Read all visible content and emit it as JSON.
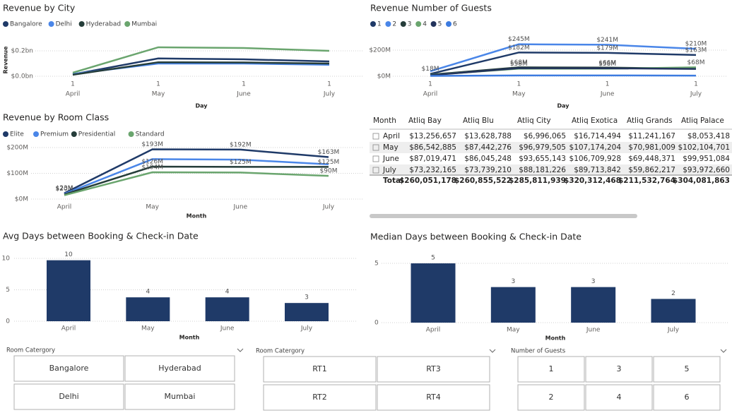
{
  "chart_data": [
    {
      "type": "line",
      "title": "Revenue by City",
      "x_title": "Day",
      "y_title": "Revenue",
      "categories": [
        "April",
        "May",
        "June",
        "July"
      ],
      "day_labels": [
        "1",
        "1",
        "1",
        "1"
      ],
      "ylim": [
        0,
        250000000
      ],
      "yticks": [
        {
          "value": 0,
          "label": "$0.0bn"
        },
        {
          "value": 200000000,
          "label": "$0.2bn"
        }
      ],
      "grid": true,
      "series": [
        {
          "name": "Bangalore",
          "color": "#1f3a68",
          "values": [
            15000000,
            140000000,
            133000000,
            117000000
          ]
        },
        {
          "name": "Delhi",
          "color": "#4a86e8",
          "values": [
            18000000,
            100000000,
            100000000,
            90000000
          ]
        },
        {
          "name": "Hyderabad",
          "color": "#253d3a",
          "values": [
            12000000,
            110000000,
            108000000,
            100000000
          ]
        },
        {
          "name": "Mumbai",
          "color": "#6aa56e",
          "values": [
            28000000,
            228000000,
            222000000,
            200000000
          ]
        }
      ]
    },
    {
      "type": "line",
      "title": "Revenue Number of Guests",
      "x_title": "Day",
      "categories": [
        "April",
        "May",
        "June",
        "July"
      ],
      "day_labels": [
        "1",
        "1",
        "1",
        "1"
      ],
      "ylim": [
        0,
        250000000
      ],
      "yticks": [
        {
          "value": 0,
          "label": "$0M"
        },
        {
          "value": 200000000,
          "label": "$200M"
        }
      ],
      "grid": true,
      "series": [
        {
          "name": "1",
          "color": "#1f3a68",
          "values": [
            18000000,
            182000000,
            179000000,
            163000000
          ],
          "value_labels": [
            "$18M",
            "$182M",
            "$179M",
            "$163M"
          ]
        },
        {
          "name": "2",
          "color": "#4a86e8",
          "values": [
            38000000,
            245000000,
            241000000,
            210000000
          ],
          "value_labels": [
            null,
            "$245M",
            "$241M",
            "$210M"
          ]
        },
        {
          "name": "3",
          "color": "#253d3a",
          "values": [
            12000000,
            68000000,
            66000000,
            58000000
          ],
          "value_labels": [
            null,
            "$68M",
            "$66M",
            null
          ]
        },
        {
          "name": "4",
          "color": "#6aa56e",
          "values": [
            10000000,
            58000000,
            58000000,
            68000000
          ],
          "value_labels": [
            null,
            "$58M",
            "$58M",
            "$68M"
          ]
        },
        {
          "name": "5",
          "color": "#22335c",
          "values": [
            8000000,
            62000000,
            61000000,
            56000000
          ]
        },
        {
          "name": "6",
          "color": "#3c7be0",
          "values": [
            3000000,
            6000000,
            6000000,
            5000000
          ]
        }
      ]
    },
    {
      "type": "line",
      "title": "Revenue by Room Class",
      "x_title": "Month",
      "categories": [
        "April",
        "May",
        "June",
        "July"
      ],
      "ylim": [
        0,
        220000000
      ],
      "yticks": [
        {
          "value": 0,
          "label": "$0M"
        },
        {
          "value": 100000000,
          "label": "$100M"
        },
        {
          "value": 200000000,
          "label": "$200M"
        }
      ],
      "grid": true,
      "series": [
        {
          "name": "Elite",
          "color": "#1f3a68",
          "values": [
            23000000,
            193000000,
            192000000,
            163000000
          ],
          "value_labels": [
            "$23M",
            "$193M",
            "$192M",
            "$163M"
          ]
        },
        {
          "name": "Premium",
          "color": "#4a86e8",
          "values": [
            20000000,
            155000000,
            153000000,
            135000000
          ],
          "value_labels": [
            "$20M",
            null,
            null,
            null
          ]
        },
        {
          "name": "Presidential",
          "color": "#253d3a",
          "values": [
            18000000,
            126000000,
            125000000,
            125000000
          ],
          "value_labels": [
            null,
            "$126M",
            "$125M",
            "$125M"
          ]
        },
        {
          "name": "Standard",
          "color": "#6aa56e",
          "values": [
            15000000,
            104000000,
            103000000,
            90000000
          ],
          "value_labels": [
            null,
            "$104M",
            null,
            "$90M"
          ]
        }
      ]
    },
    {
      "type": "bar",
      "title": "Avg Days between Booking & Check-in Date",
      "x_title": "Month",
      "categories": [
        "April",
        "May",
        "June",
        "July"
      ],
      "values": [
        9.7,
        3.8,
        3.8,
        2.9
      ],
      "value_labels": [
        "10",
        "4",
        "4",
        "3"
      ],
      "color": "#1f3a68",
      "ylim": [
        0,
        11.5
      ],
      "yticks": [
        0,
        5,
        10
      ],
      "grid": true
    },
    {
      "type": "bar",
      "title": "Median Days between Booking & Check-in Date",
      "x_title": "Month",
      "categories": [
        "April",
        "May",
        "June",
        "July"
      ],
      "values": [
        5,
        3,
        3,
        2
      ],
      "color": "#1f3a68",
      "ylim": [
        0,
        5.8
      ],
      "yticks": [
        0,
        5
      ],
      "grid": true
    }
  ],
  "table": {
    "columns": [
      "Month",
      "Atliq Bay",
      "Atliq Blu",
      "Atliq City",
      "Atliq Exotica",
      "Atliq Grands",
      "Atliq Palace"
    ],
    "rows": [
      [
        "April",
        "$13,256,657",
        "$13,628,788",
        "$6,996,065",
        "$16,714,494",
        "$11,241,167",
        "$8,053,418"
      ],
      [
        "May",
        "$86,542,885",
        "$87,442,276",
        "$96,979,505",
        "$107,174,204",
        "$70,981,009",
        "$102,104,701"
      ],
      [
        "June",
        "$87,019,471",
        "$86,045,248",
        "$93,655,143",
        "$106,709,928",
        "$69,448,371",
        "$99,951,084"
      ],
      [
        "July",
        "$73,232,165",
        "$73,739,210",
        "$88,181,226",
        "$89,713,842",
        "$59,862,217",
        "$93,972,660"
      ],
      [
        "Total",
        "$260,051,178",
        "$260,855,522",
        "$285,811,939",
        "$320,312,468",
        "$211,532,764",
        "$304,081,863"
      ]
    ]
  },
  "slicers": [
    {
      "title": "Room Catergory",
      "items": [
        "Bangalore",
        "Hyderabad",
        "Delhi",
        "Mumbai"
      ]
    },
    {
      "title": "Room Catergory",
      "items": [
        "RT1",
        "RT3",
        "RT2",
        "RT4"
      ]
    },
    {
      "title": "Number of Guests",
      "items": [
        "1",
        "3",
        "5",
        "2",
        "4",
        "6"
      ]
    }
  ]
}
